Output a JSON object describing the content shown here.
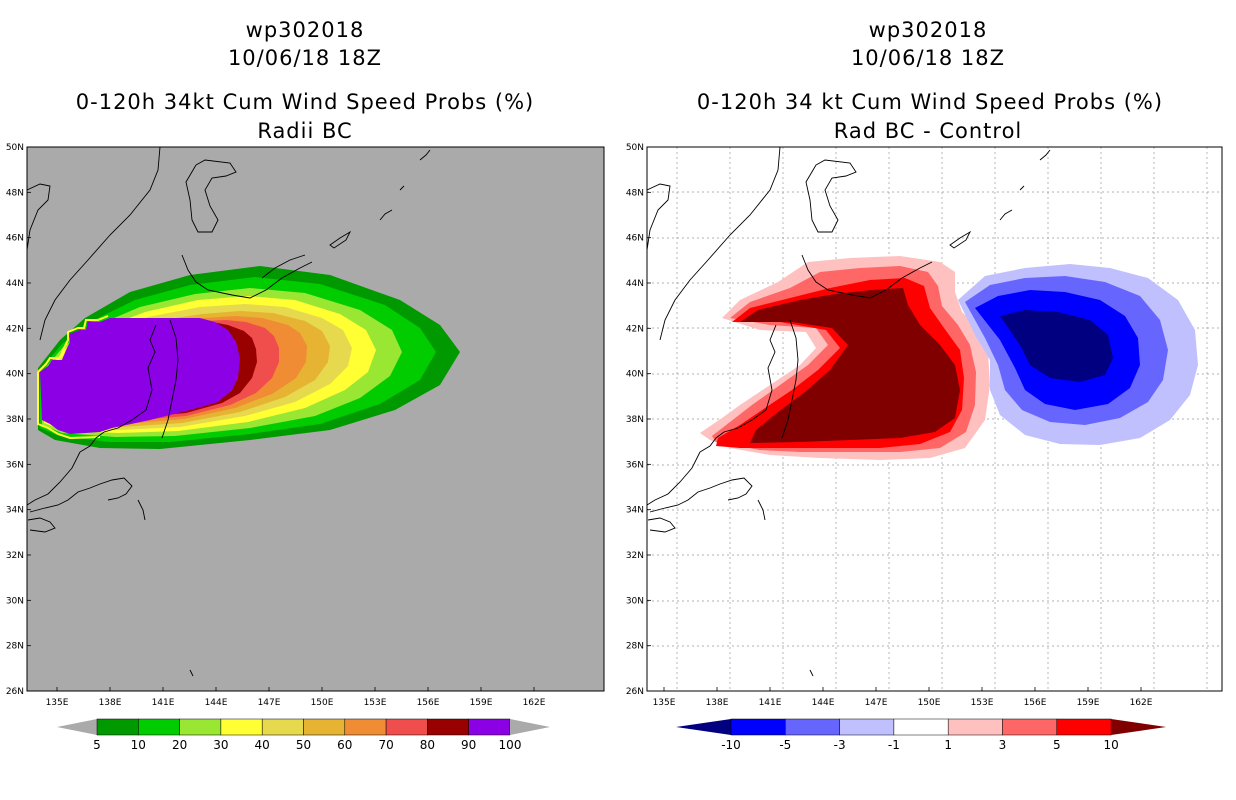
{
  "left_panel": {
    "title_lines": [
      "wp302018",
      "10/06/18 18Z",
      "0-120h 34kt Cum Wind Speed Probs (%)",
      "Radii BC"
    ],
    "colorbar": {
      "labels": [
        "5",
        "10",
        "20",
        "30",
        "40",
        "50",
        "60",
        "70",
        "80",
        "90",
        "100"
      ],
      "colors": [
        "#009900",
        "#00cc00",
        "#99e633",
        "#ffff33",
        "#e6d94d",
        "#e6b333",
        "#f08c33",
        "#f04d4d",
        "#990000",
        "#8c00e6"
      ],
      "end_color": "#aaaaaa"
    },
    "background_color": "#aaaaaa"
  },
  "right_panel": {
    "title_lines": [
      "wp302018",
      "10/06/18 18Z",
      "0-120h 34 kt Cum Wind Speed Probs (%)",
      "Rad BC - Control"
    ],
    "colorbar": {
      "labels": [
        "-10",
        "-5",
        "-3",
        "-1",
        "1",
        "3",
        "5",
        "10"
      ],
      "colors": [
        "#000080",
        "#0000ff",
        "#6666ff",
        "#c0c0ff",
        "#ffffff",
        "#ffc0c0",
        "#ff6666",
        "#ff0000",
        "#800000"
      ]
    }
  },
  "axes": {
    "lat_labels": [
      "50N",
      "48N",
      "46N",
      "44N",
      "42N",
      "40N",
      "38N",
      "36N",
      "34N",
      "32N",
      "30N",
      "28N",
      "26N"
    ],
    "lon_labels": [
      "135E",
      "138E",
      "141E",
      "144E",
      "147E",
      "150E",
      "153E",
      "156E",
      "159E",
      "162E"
    ]
  }
}
